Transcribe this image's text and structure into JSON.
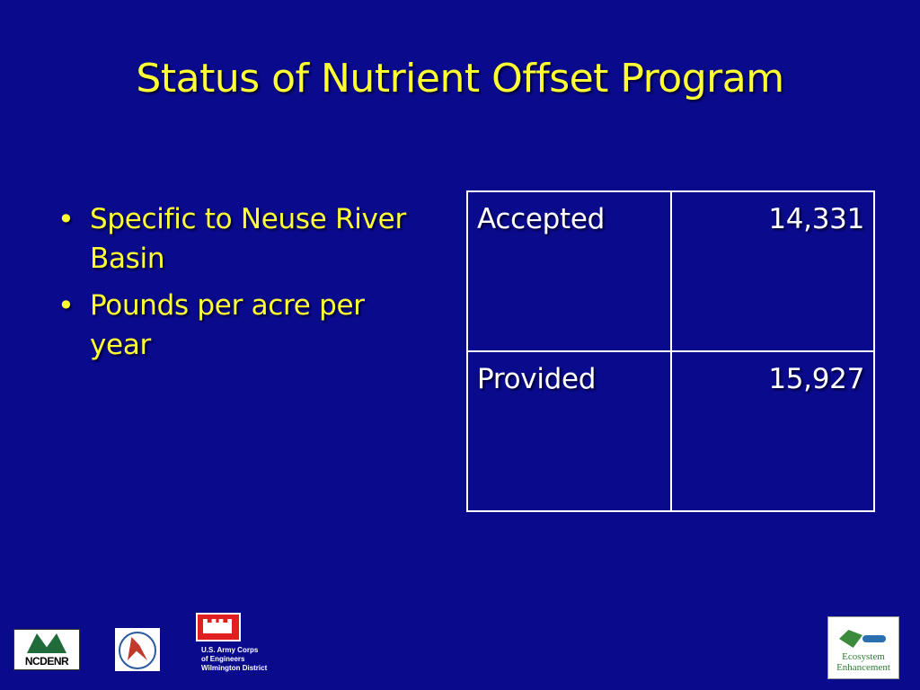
{
  "slide": {
    "title": "Status of Nutrient Offset Program"
  },
  "bullets": [
    {
      "text": "Specific to Neuse River Basin"
    },
    {
      "text": "Pounds per acre per year"
    }
  ],
  "table": {
    "rows": [
      {
        "label": "Accepted",
        "value": "14,331"
      },
      {
        "label": "Provided",
        "value": "15,927"
      }
    ]
  },
  "logos": {
    "ncdenr": {
      "text": "NCDENR",
      "icon": "ncdenr-logo"
    },
    "dot": {
      "icon": "nc-dot-seal-logo"
    },
    "usace": {
      "icon": "usace-castle-logo",
      "line1": "U.S. Army Corps",
      "line2": "of Engineers",
      "line3": "Wilmington District"
    },
    "eep": {
      "icon": "ecosystem-enhancement-program-logo",
      "line1": "Ecosystem",
      "line2": "Enhancement"
    }
  },
  "colors": {
    "background": "#0a0a8c",
    "title": "#ffff33",
    "table_text": "#ffffff"
  }
}
